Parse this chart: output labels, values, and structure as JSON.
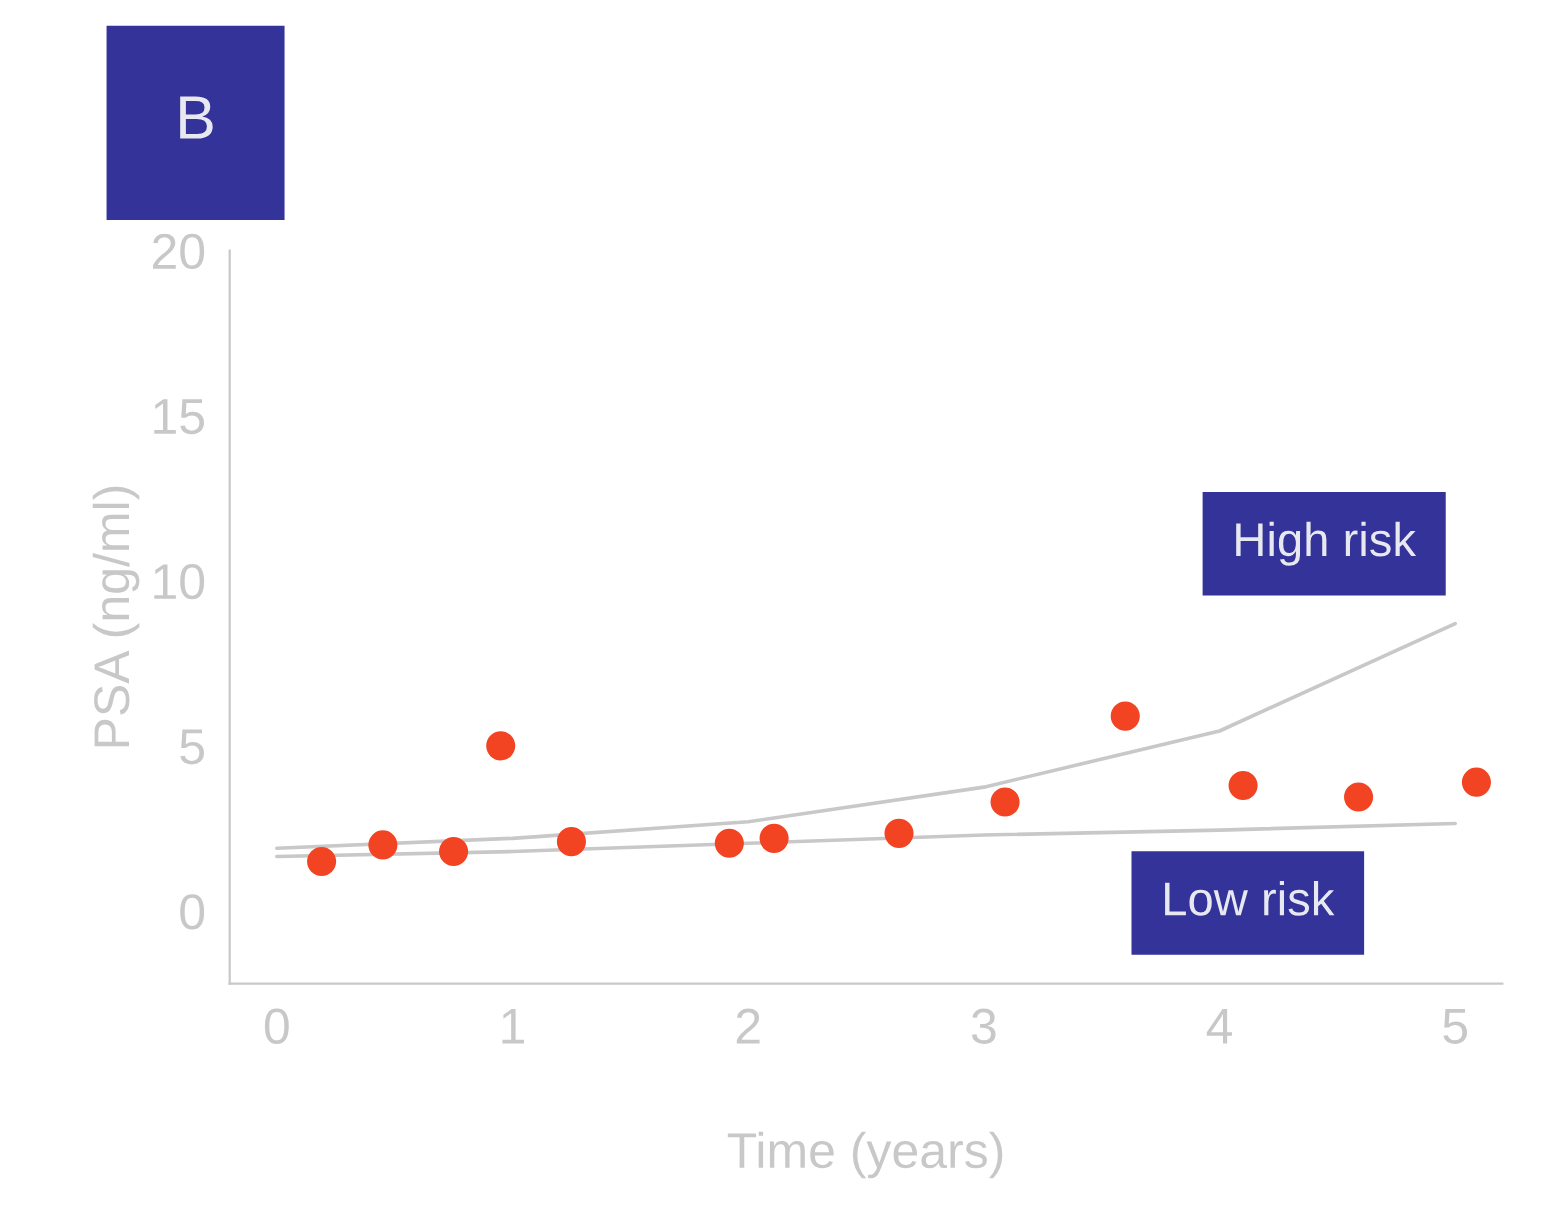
{
  "chart_data": {
    "type": "scatter",
    "title": "B",
    "xlabel": "Time (years)",
    "ylabel": "PSA (ng/ml)",
    "xlim": [
      -0.2,
      5.2
    ],
    "ylim": [
      -2.2,
      20
    ],
    "xticks": [
      0,
      1,
      2,
      3,
      4,
      5
    ],
    "yticks": [
      0,
      5,
      10,
      15,
      20
    ],
    "grid": false,
    "series": [
      {
        "marker": "circle",
        "color": "#f24422",
        "x": [
          0.19,
          0.45,
          0.75,
          0.95,
          1.25,
          1.92,
          2.11,
          2.64,
          3.09,
          3.6,
          4.1,
          4.59,
          5.09
        ],
        "values": [
          1.5,
          2.0,
          1.8,
          5.0,
          2.1,
          2.05,
          2.2,
          2.35,
          3.3,
          5.9,
          3.8,
          3.45,
          3.9
        ]
      },
      {
        "type": "line",
        "name": "High risk",
        "color": "#c8c8c8",
        "x": [
          0,
          1,
          2,
          3,
          4,
          5
        ],
        "values": [
          1.9,
          2.2,
          2.7,
          3.75,
          5.45,
          8.7
        ]
      },
      {
        "type": "line",
        "name": "Low risk",
        "color": "#c8c8c8",
        "x": [
          0,
          1,
          2,
          3,
          4,
          5
        ],
        "values": [
          1.65,
          1.8,
          2.05,
          2.3,
          2.45,
          2.65
        ]
      }
    ]
  }
}
